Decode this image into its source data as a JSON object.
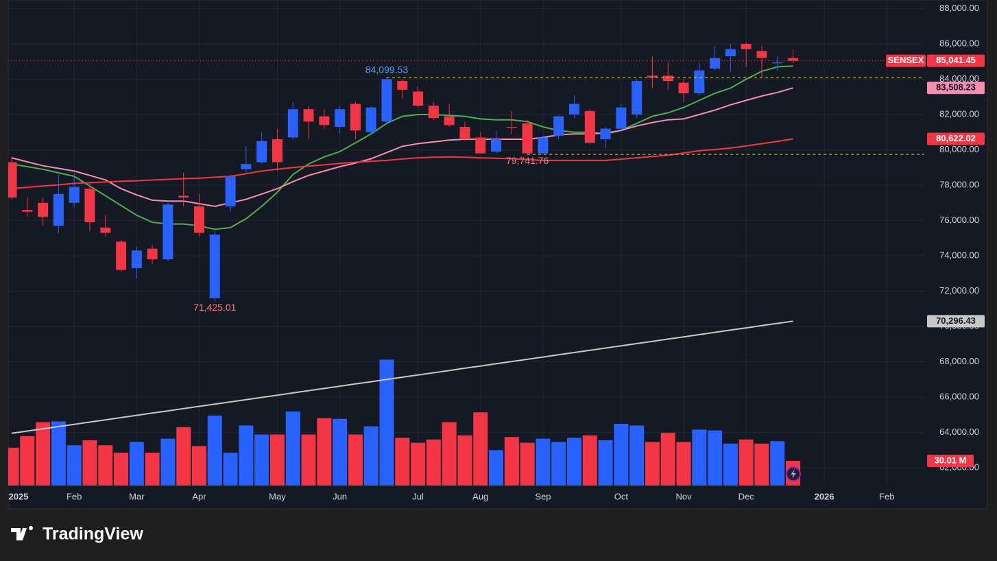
{
  "chart_data": {
    "type": "candlestick",
    "up_color": "#2962ff",
    "down_color": "#f23645",
    "symbol": "SENSEX",
    "last_label": "85,041.45",
    "x": [
      0,
      1,
      2,
      3,
      4,
      5,
      6,
      7,
      8,
      9,
      10,
      11,
      12,
      13,
      14,
      15,
      16,
      17,
      18,
      19,
      20,
      21,
      22,
      23,
      24,
      25,
      26,
      27,
      28,
      29,
      30,
      31,
      32,
      33,
      34,
      35,
      36,
      37,
      38,
      39,
      40,
      41,
      42,
      43,
      44,
      45,
      46,
      47,
      48,
      49,
      50
    ],
    "open": [
      79300,
      76600,
      77000,
      75700,
      77000,
      77800,
      75600,
      74800,
      73300,
      74400,
      73800,
      77400,
      76800,
      71600,
      76800,
      78900,
      79300,
      80600,
      80700,
      82300,
      81900,
      81300,
      82600,
      81000,
      81600,
      83900,
      83300,
      82500,
      81900,
      81300,
      80700,
      79900,
      81300,
      81500,
      79800,
      80800,
      82000,
      82200,
      80600,
      81200,
      82000,
      84200,
      84200,
      83800,
      83200,
      84600,
      85300,
      86000,
      85600,
      84900,
      85200
    ],
    "high": [
      79600,
      77300,
      77300,
      78600,
      78700,
      78100,
      76300,
      74900,
      74500,
      74600,
      77000,
      78700,
      77500,
      75400,
      78600,
      80200,
      81000,
      81200,
      82700,
      82500,
      82300,
      82500,
      82700,
      82500,
      84099.53,
      84000,
      83600,
      82700,
      82600,
      81600,
      81000,
      81100,
      82200,
      81700,
      80800,
      82000,
      83100,
      82300,
      81300,
      82600,
      84000,
      85300,
      85000,
      84000,
      84900,
      85900,
      86000,
      86100,
      85900,
      85300,
      85700
    ],
    "low": [
      77200,
      76200,
      75700,
      75300,
      76800,
      75400,
      75100,
      73100,
      72700,
      73500,
      73700,
      76800,
      75100,
      71425.01,
      76500,
      78700,
      79200,
      78800,
      80600,
      80600,
      81200,
      80900,
      80600,
      80900,
      81500,
      82900,
      82400,
      81700,
      81300,
      80500,
      79800,
      79800,
      80900,
      79741.76,
      79750,
      80600,
      81800,
      80300,
      80100,
      81100,
      81800,
      83500,
      83400,
      82700,
      83100,
      84500,
      84400,
      84700,
      84100,
      84500,
      84900
    ],
    "close": [
      77300,
      76500,
      76200,
      77500,
      77900,
      75900,
      75300,
      73200,
      74300,
      73800,
      76900,
      77300,
      75300,
      75200,
      78500,
      79200,
      80500,
      79300,
      82300,
      81600,
      81400,
      82300,
      81100,
      82400,
      84000,
      83400,
      82500,
      81800,
      81400,
      80600,
      79800,
      80600,
      81250,
      79800,
      80700,
      81900,
      82600,
      80400,
      81200,
      82400,
      83900,
      84100,
      83900,
      83200,
      84500,
      85200,
      85700,
      85700,
      85200,
      84950,
      85041.45
    ],
    "volume": [
      46,
      60,
      77,
      78,
      49,
      55,
      49,
      40,
      53,
      40,
      57,
      71,
      48,
      85,
      40,
      73,
      62,
      62,
      90,
      62,
      82,
      81,
      62,
      72,
      153,
      58,
      52,
      56,
      77,
      61,
      89,
      43,
      59,
      52,
      57,
      53,
      58,
      61,
      55,
      75,
      73,
      53,
      64,
      53,
      68,
      67,
      51,
      56,
      51,
      54,
      30.01
    ],
    "volume_last_label": "30.01 M",
    "volume_ylim": [
      0,
      590
    ],
    "series": [
      {
        "color": "#4caf50",
        "values": [
          79200,
          79050,
          78900,
          78700,
          78500,
          77950,
          77400,
          76850,
          76300,
          75900,
          75800,
          75800,
          75700,
          75500,
          75600,
          76100,
          76800,
          77600,
          78600,
          79200,
          79600,
          79900,
          80400,
          80900,
          81500,
          81900,
          82000,
          82000,
          81950,
          81900,
          81750,
          81700,
          81700,
          81600,
          81300,
          81100,
          81000,
          81000,
          80900,
          81100,
          81500,
          81900,
          82100,
          82400,
          82800,
          83200,
          83500,
          84000,
          84450,
          84700,
          84750
        ]
      },
      {
        "color": "#f48fb1",
        "last_label": "83,508.23",
        "values": [
          79550,
          79320,
          79100,
          78950,
          78800,
          78550,
          78300,
          77800,
          77450,
          77150,
          77100,
          77100,
          76950,
          76800,
          77000,
          77200,
          77500,
          77800,
          78200,
          78550,
          78800,
          79050,
          79250,
          79500,
          79850,
          80200,
          80350,
          80450,
          80550,
          80600,
          80600,
          80600,
          80600,
          80600,
          80700,
          80850,
          80900,
          80900,
          80950,
          81100,
          81350,
          81550,
          81700,
          81750,
          82000,
          82250,
          82550,
          82800,
          83050,
          83250,
          83508.23
        ]
      },
      {
        "color": "#f23645",
        "last_label": "80,622.02",
        "values": [
          77800,
          77880,
          77950,
          78020,
          78100,
          78140,
          78180,
          78220,
          78250,
          78290,
          78330,
          78370,
          78400,
          78450,
          78500,
          78650,
          78800,
          78900,
          79000,
          79080,
          79150,
          79230,
          79300,
          79350,
          79400,
          79480,
          79550,
          79580,
          79600,
          79580,
          79550,
          79520,
          79500,
          79450,
          79400,
          79400,
          79400,
          79400,
          79400,
          79470,
          79550,
          79620,
          79700,
          79820,
          79950,
          80020,
          80100,
          80220,
          80350,
          80480,
          80622.02
        ]
      },
      {
        "color": "#c8c8c8",
        "last_label": "70,296.43",
        "values": [
          63950,
          64077,
          64204,
          64331,
          64458,
          64585,
          64712,
          64839,
          64966,
          65093,
          65220,
          65347,
          65474,
          65601,
          65728,
          65855,
          65982,
          66109,
          66236,
          66363,
          66490,
          66617,
          66744,
          66871,
          66998,
          67125,
          67252,
          67379,
          67506,
          67633,
          67760,
          67887,
          68014,
          68141,
          68268,
          68395,
          68522,
          68649,
          68776,
          68903,
          69030,
          69157,
          69284,
          69411,
          69538,
          69665,
          69792,
          69919,
          70046,
          70173,
          70296.43
        ]
      }
    ],
    "annotations": [
      {
        "label": "84,099.53",
        "value": 84099.53,
        "x": 24,
        "color": "#5b9cf6",
        "position": "above",
        "guide_color": "#e6d33a"
      },
      {
        "label": "71,425.01",
        "value": 71425.01,
        "x": 13,
        "color": "#f77c80",
        "position": "below"
      },
      {
        "label": "79,741.76",
        "value": 79741.76,
        "x": 33,
        "color": "#f77c80",
        "position": "below",
        "guide_color": "#e6d33a"
      }
    ],
    "xlim": [
      -0.22,
      58.4
    ],
    "xticks": [
      {
        "value": -0.2,
        "label": "2025"
      },
      {
        "value": 4,
        "label": "Feb"
      },
      {
        "value": 8,
        "label": "Mar"
      },
      {
        "value": 12,
        "label": "Apr"
      },
      {
        "value": 17,
        "label": "May"
      },
      {
        "value": 21,
        "label": "Jun"
      },
      {
        "value": 26,
        "label": "Jul"
      },
      {
        "value": 30,
        "label": "Aug"
      },
      {
        "value": 34,
        "label": "Sep"
      },
      {
        "value": 39,
        "label": "Oct"
      },
      {
        "value": 43,
        "label": "Nov"
      },
      {
        "value": 47,
        "label": "Dec"
      },
      {
        "value": 52,
        "label": "2026"
      },
      {
        "value": 56,
        "label": "Feb"
      }
    ],
    "ylim": [
      60990,
      88485
    ],
    "yticks": [
      {
        "value": 62000,
        "label": "62,000.00"
      },
      {
        "value": 64000,
        "label": "64,000.00"
      },
      {
        "value": 66000,
        "label": "66,000.00"
      },
      {
        "value": 68000,
        "label": "68,000.00"
      },
      {
        "value": 70000,
        "label": "70,000.00"
      },
      {
        "value": 72000,
        "label": "72,000.00"
      },
      {
        "value": 74000,
        "label": "74,000.00"
      },
      {
        "value": 76000,
        "label": "76,000.00"
      },
      {
        "value": 78000,
        "label": "78,000.00"
      },
      {
        "value": 80000,
        "label": "80,000.00"
      },
      {
        "value": 82000,
        "label": "82,000.00"
      },
      {
        "value": 84000,
        "label": "84,000.00"
      },
      {
        "value": 86000,
        "label": "86,000.00"
      },
      {
        "value": 88000,
        "label": "88,000.00"
      }
    ],
    "grid": true
  },
  "brand": "TradingView"
}
